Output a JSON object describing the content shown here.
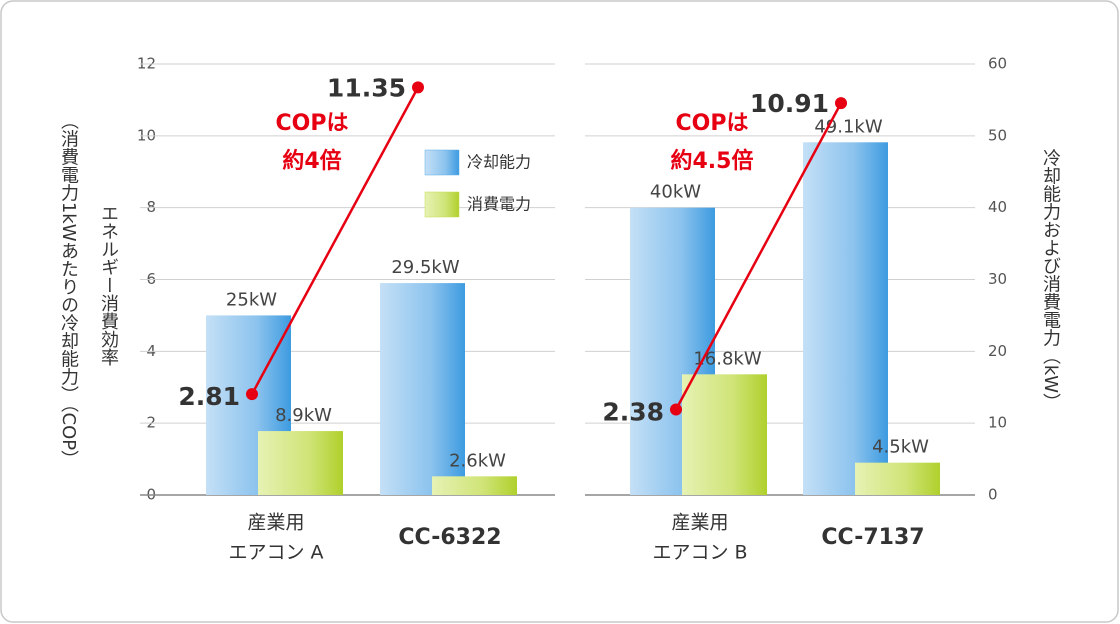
{
  "chart_data": {
    "type": "bar",
    "ylabel": [
      "（消費電力1kWあたりの冷却能力）（COP）",
      "エネルギー消費効率"
    ],
    "y2label": "冷却能力および消費電力（kW）",
    "ylim": [
      0,
      12
    ],
    "yticks": [
      0,
      2,
      4,
      6,
      8,
      10,
      12
    ],
    "y2lim": [
      0,
      60
    ],
    "y2ticks": [
      0,
      10,
      20,
      30,
      40,
      50,
      60
    ],
    "grid": true,
    "legend": {
      "position": "upper right",
      "entries": [
        {
          "name": "冷却能力",
          "color": "#5aaae6"
        },
        {
          "name": "消費電力",
          "color": "#c2dc4e"
        }
      ]
    },
    "cop_color": "#e60012",
    "panels": [
      {
        "categories": [
          [
            "産業用",
            "エアコン A"
          ],
          "CC-6322"
        ],
        "series": [
          {
            "values": [
              25,
              29.5
            ],
            "value_labels": [
              "25kW",
              "29.5kW"
            ],
            "axis": "y2"
          },
          {
            "values": [
              8.9,
              2.6
            ],
            "value_labels": [
              "8.9kW",
              "2.6kW"
            ],
            "axis": "y2"
          }
        ],
        "cop": [
          2.81,
          11.35
        ],
        "annotation": [
          "COPは",
          "約4倍"
        ]
      },
      {
        "categories": [
          [
            "産業用",
            "エアコン B"
          ],
          "CC-7137"
        ],
        "series": [
          {
            "values": [
              40,
              49.1
            ],
            "value_labels": [
              "40kW",
              "49.1kW"
            ],
            "axis": "y2"
          },
          {
            "values": [
              16.8,
              4.5
            ],
            "value_labels": [
              "16.8kW",
              "4.5kW"
            ],
            "axis": "y2"
          }
        ],
        "cop": [
          2.38,
          10.91
        ],
        "annotation": [
          "COPは",
          "約4.5倍"
        ]
      }
    ]
  }
}
